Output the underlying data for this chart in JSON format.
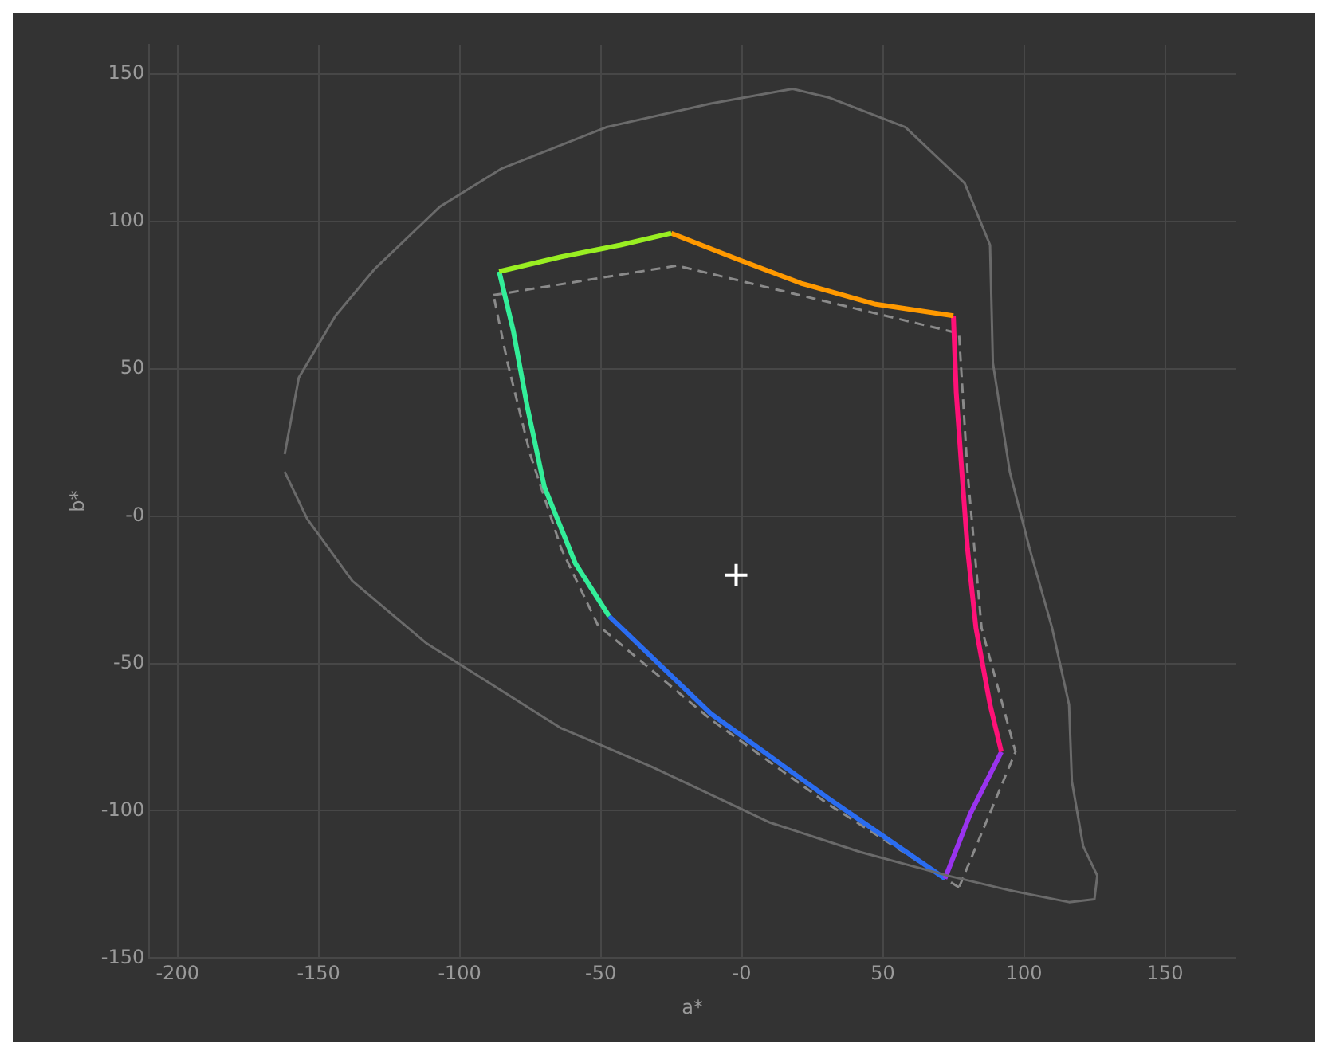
{
  "chart_data": {
    "type": "line",
    "xlabel": "a*",
    "ylabel": "b*",
    "xlim": [
      -210,
      175
    ],
    "ylim": [
      -150,
      160
    ],
    "xticks": [
      -200,
      -150,
      -100,
      -50,
      {
        "value": 0,
        "label": "-0"
      },
      50,
      100,
      150
    ],
    "yticks": [
      -150,
      -100,
      -50,
      {
        "value": 0,
        "label": "-0"
      },
      50,
      100,
      150
    ],
    "grid": true,
    "legend": false,
    "series": [
      {
        "color": "#6a6a6a",
        "line_style": "solid",
        "marker": "none",
        "x": [
          -162,
          -157,
          -144,
          -130,
          -107,
          -85,
          -48,
          -11,
          18,
          31,
          58,
          79,
          88,
          89,
          95,
          102,
          110,
          116,
          117,
          121,
          126,
          125,
          116,
          95,
          73,
          42,
          10,
          -32,
          -64,
          -112,
          -138,
          -154,
          -162
        ],
        "values": [
          21,
          47,
          68,
          84,
          105,
          118,
          132,
          140,
          145,
          142,
          132,
          113,
          92,
          52,
          15,
          -11,
          -38,
          -64,
          -90,
          -112,
          -122,
          -130,
          -131,
          -127,
          -122,
          -114,
          -104,
          -85,
          -72,
          -43,
          -22,
          -1,
          15
        ]
      },
      {
        "color": "#99ee22",
        "line_style": "solid",
        "marker": "none",
        "x": [
          -86,
          -64,
          -43,
          -25
        ],
        "values": [
          83,
          88,
          92,
          96
        ]
      },
      {
        "color": "#ff9900",
        "line_style": "solid",
        "marker": "none",
        "x": [
          -25,
          -1,
          21,
          47,
          75
        ],
        "values": [
          96,
          87,
          79,
          72,
          68
        ]
      },
      {
        "color": "#ff1177",
        "line_style": "solid",
        "marker": "none",
        "x": [
          75,
          76,
          78,
          80,
          83,
          88,
          92
        ],
        "values": [
          68,
          42,
          15,
          -11,
          -38,
          -64,
          -80
        ]
      },
      {
        "color": "#9933ee",
        "line_style": "solid",
        "marker": "none",
        "x": [
          92,
          81,
          72
        ],
        "values": [
          -80,
          -101,
          -123
        ]
      },
      {
        "color": "#2a6cf0",
        "line_style": "solid",
        "marker": "none",
        "x": [
          72,
          31,
          -11,
          -47
        ],
        "values": [
          -123,
          -96,
          -67,
          -34
        ]
      },
      {
        "color": "#33ee99",
        "line_style": "solid",
        "marker": "none",
        "x": [
          -47,
          -59,
          -70,
          -76,
          -81,
          -86
        ],
        "values": [
          -34,
          -16,
          10,
          37,
          63,
          83
        ]
      },
      {
        "color": "#8a8a8a",
        "line_style": "dashed",
        "marker": "none",
        "x": [
          -88,
          -23,
          77,
          80,
          85,
          97,
          77
        ],
        "values": [
          75,
          85,
          62,
          15,
          -38,
          -80,
          -126
        ]
      },
      {
        "color": "#8a8a8a",
        "line_style": "dashed",
        "marker": "none",
        "x": [
          77,
          31,
          -11,
          -51,
          -64,
          -75,
          -83,
          -88
        ],
        "values": [
          -126,
          -98,
          -69,
          -37,
          -11,
          21,
          52,
          75
        ]
      },
      {
        "type": "scatter",
        "color": "#ffffff",
        "marker": "cross",
        "x": [
          -2
        ],
        "values": [
          -20
        ]
      }
    ]
  }
}
